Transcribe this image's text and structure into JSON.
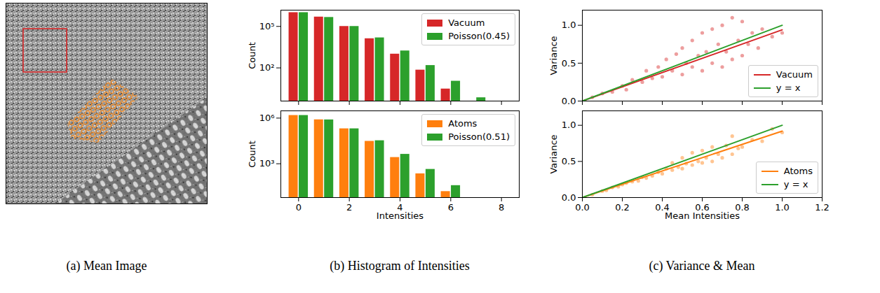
{
  "chart_data": [
    {
      "type": "image",
      "caption": "(a) Mean Image"
    },
    {
      "type": "bar",
      "caption": "(b) Histogram of Intensities",
      "y_label": "Count",
      "x": [
        0,
        1,
        2,
        3,
        4,
        5,
        6,
        7
      ],
      "series": [
        {
          "name": "Vacuum",
          "color": "#d62728",
          "values": [
            1000000,
            480000,
            100000,
            13000,
            1000,
            70,
            3,
            null
          ]
        },
        {
          "name": "Poisson(0.45)",
          "color": "#2ca02c",
          "values": [
            1000000,
            450000,
            100000,
            15000,
            1700,
            150,
            11,
            0.7
          ]
        }
      ],
      "xlim": [
        -0.7,
        8.7
      ],
      "xticks": [
        0,
        2,
        4,
        6,
        8
      ],
      "ylim": [
        0.4,
        1500000
      ],
      "yticks": [
        {
          "value": 100,
          "label": "10²"
        },
        {
          "value": 100000,
          "label": "10⁵"
        }
      ],
      "log": "y",
      "legend": "upper right",
      "tick_labels": "y",
      "grid": false
    },
    {
      "type": "bar",
      "x_label": "Intensities",
      "y_label": "Count",
      "x": [
        0,
        1,
        2,
        3,
        4,
        5,
        6
      ],
      "series": [
        {
          "name": "Atoms",
          "color": "#ff7f0e",
          "values": [
            1500000,
            780000,
            200000,
            30000,
            2600,
            220,
            15
          ]
        },
        {
          "name": "Poisson(0.51)",
          "color": "#2ca02c",
          "values": [
            1500000,
            770000,
            200000,
            33000,
            4200,
            430,
            37
          ]
        }
      ],
      "xlim": [
        -0.7,
        8.7
      ],
      "xticks": [
        0,
        2,
        4,
        6,
        8
      ],
      "ylim": [
        6,
        3000000
      ],
      "yticks": [
        {
          "value": 1000,
          "label": "10³"
        },
        {
          "value": 1000000,
          "label": "10⁶"
        }
      ],
      "log": "y",
      "legend": "upper right",
      "grid": false
    },
    {
      "type": "scatter",
      "caption": "(c) Variance & Mean",
      "y_label": "Variance",
      "series": [
        {
          "name": "Vacuum",
          "color": "#d62728",
          "type": "line",
          "x": [
            0,
            1
          ],
          "values": [
            0,
            0.94
          ],
          "points": {
            "x": [
              0.05,
              0.1,
              0.15,
              0.2,
              0.22,
              0.25,
              0.3,
              0.32,
              0.35,
              0.38,
              0.4,
              0.42,
              0.45,
              0.47,
              0.5,
              0.5,
              0.52,
              0.55,
              0.55,
              0.58,
              0.6,
              0.6,
              0.62,
              0.65,
              0.65,
              0.68,
              0.7,
              0.7,
              0.72,
              0.75,
              0.75,
              0.78,
              0.8,
              0.8,
              0.83,
              0.85,
              0.88,
              0.9,
              0.95,
              1.0
            ],
            "y": [
              0.05,
              0.1,
              0.12,
              0.2,
              0.15,
              0.28,
              0.25,
              0.4,
              0.3,
              0.45,
              0.32,
              0.55,
              0.4,
              0.62,
              0.35,
              0.7,
              0.5,
              0.45,
              0.8,
              0.6,
              0.4,
              0.9,
              0.65,
              0.5,
              0.95,
              0.75,
              0.45,
              1.0,
              0.65,
              0.55,
              1.1,
              0.8,
              0.6,
              1.05,
              0.75,
              0.9,
              0.7,
              0.95,
              0.85,
              0.9
            ]
          }
        },
        {
          "name": "y = x",
          "color": "#2ca02c",
          "type": "line",
          "x": [
            0,
            1
          ],
          "values": [
            0,
            1
          ]
        }
      ],
      "xlim": [
        0,
        1.2
      ],
      "xticks": [
        {
          "value": 0,
          "label": "0.0"
        },
        {
          "value": 0.2,
          "label": "0.2"
        },
        {
          "value": 0.4,
          "label": "0.4"
        },
        {
          "value": 0.6,
          "label": "0.6"
        },
        {
          "value": 0.8,
          "label": "0.8"
        },
        {
          "value": 1,
          "label": "1.0"
        },
        {
          "value": 1.2,
          "label": "1.2"
        }
      ],
      "ylim": [
        0,
        1.2
      ],
      "yticks": [
        {
          "value": 0,
          "label": "0.0"
        },
        {
          "value": 0.5,
          "label": "0.5"
        },
        {
          "value": 1,
          "label": "1.0"
        }
      ],
      "legend": "lower right",
      "tick_labels": "y",
      "grid": false
    },
    {
      "type": "scatter",
      "x_label": "Mean Intensities",
      "y_label": "Variance",
      "series": [
        {
          "name": "Atoms",
          "color": "#ff7f0e",
          "type": "line",
          "x": [
            0,
            1
          ],
          "values": [
            0,
            0.92
          ],
          "points": {
            "x": [
              0.05,
              0.1,
              0.12,
              0.15,
              0.18,
              0.2,
              0.22,
              0.25,
              0.28,
              0.3,
              0.32,
              0.35,
              0.38,
              0.4,
              0.42,
              0.45,
              0.45,
              0.48,
              0.5,
              0.5,
              0.52,
              0.55,
              0.55,
              0.58,
              0.6,
              0.6,
              0.62,
              0.65,
              0.65,
              0.68,
              0.7,
              0.72,
              0.75,
              0.75,
              0.78,
              0.8,
              0.85,
              0.9,
              0.95,
              1.0
            ],
            "y": [
              0.04,
              0.09,
              0.1,
              0.14,
              0.15,
              0.18,
              0.2,
              0.22,
              0.23,
              0.28,
              0.27,
              0.3,
              0.35,
              0.33,
              0.4,
              0.38,
              0.48,
              0.42,
              0.4,
              0.55,
              0.47,
              0.45,
              0.62,
              0.5,
              0.48,
              0.65,
              0.55,
              0.5,
              0.7,
              0.6,
              0.55,
              0.72,
              0.6,
              0.85,
              0.68,
              0.7,
              0.8,
              0.78,
              0.95,
              0.9
            ]
          }
        },
        {
          "name": "y = x",
          "color": "#2ca02c",
          "type": "line",
          "x": [
            0,
            1
          ],
          "values": [
            0,
            1
          ]
        }
      ],
      "xlim": [
        0,
        1.2
      ],
      "xticks": [
        {
          "value": 0,
          "label": "0.0"
        },
        {
          "value": 0.2,
          "label": "0.2"
        },
        {
          "value": 0.4,
          "label": "0.4"
        },
        {
          "value": 0.6,
          "label": "0.6"
        },
        {
          "value": 0.8,
          "label": "0.8"
        },
        {
          "value": 1,
          "label": "1.0"
        },
        {
          "value": 1.2,
          "label": "1.2"
        }
      ],
      "ylim": [
        0,
        1.2
      ],
      "yticks": [
        {
          "value": 0,
          "label": "0.0"
        },
        {
          "value": 0.5,
          "label": "0.5"
        },
        {
          "value": 1,
          "label": "1.0"
        }
      ],
      "legend": "lower right",
      "grid": false
    }
  ]
}
